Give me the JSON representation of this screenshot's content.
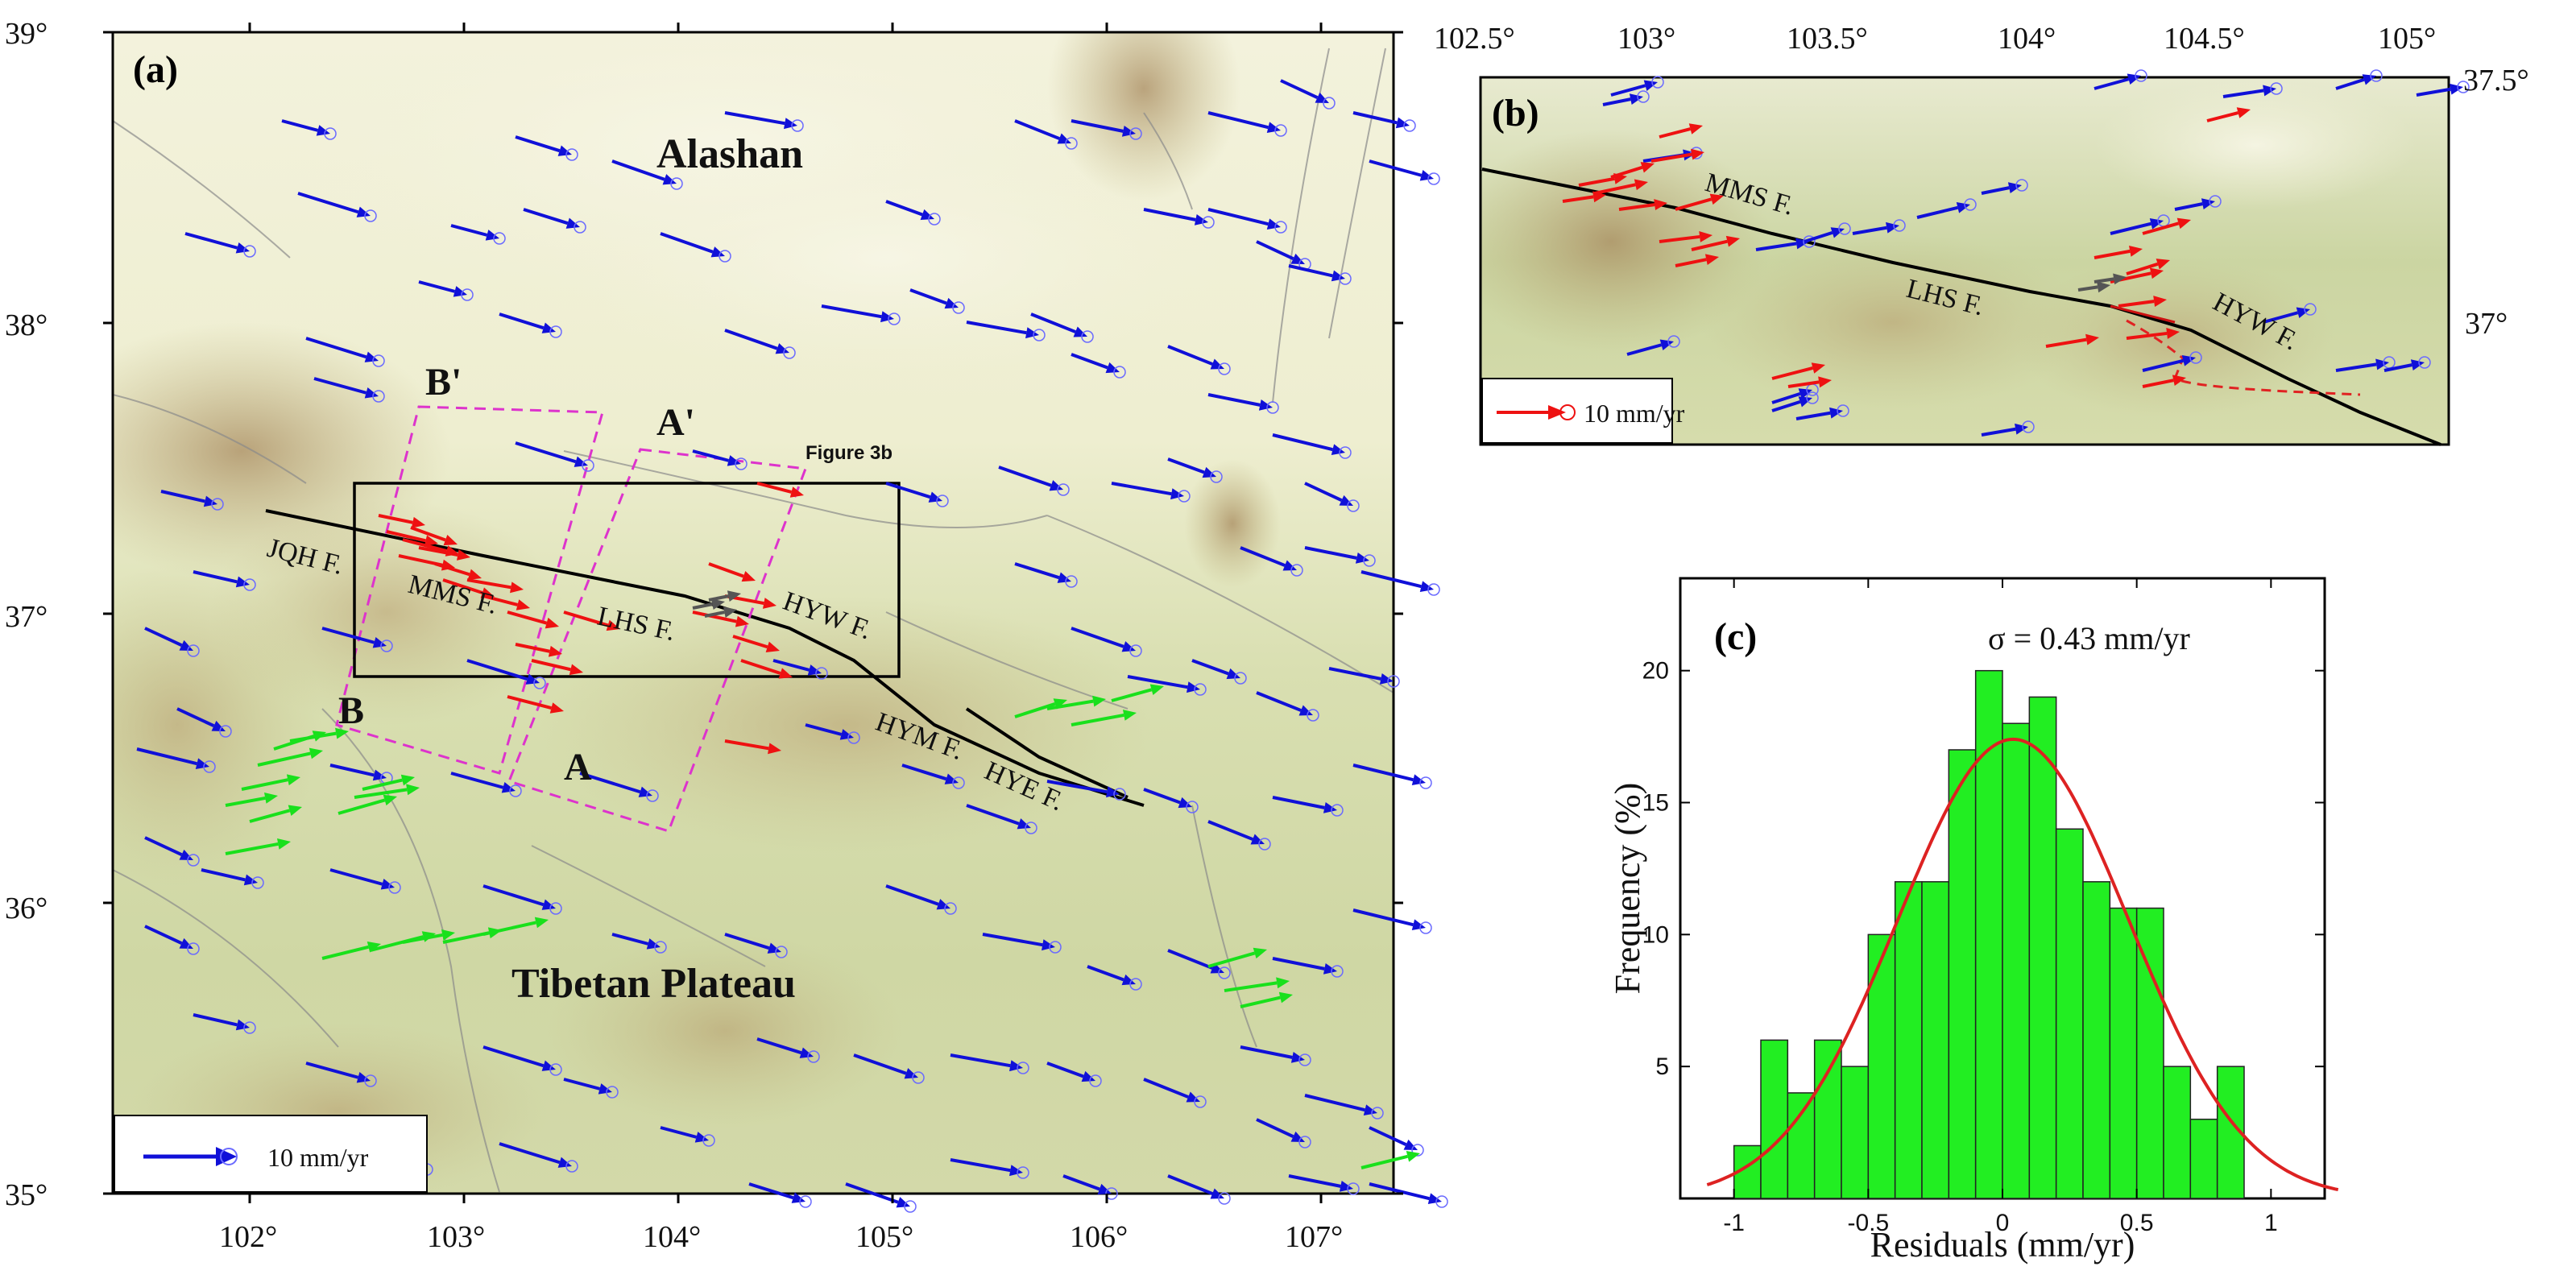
{
  "panel_a": {
    "tag": "(a)",
    "lat_labels": [
      "39°",
      "38°",
      "37°",
      "36°",
      "35°"
    ],
    "lon_labels": [
      "102°",
      "103°",
      "104°",
      "105°",
      "106°",
      "107°"
    ],
    "regions": {
      "north": "Alashan",
      "south": "Tibetan Plateau"
    },
    "faults": [
      "JQH F.",
      "MMS F.",
      "LHS F.",
      "HYW F.",
      "HYM F.",
      "HYE F."
    ],
    "profiles": {
      "a_start": "A",
      "a_end": "A'",
      "b_start": "B",
      "b_end": "B'"
    },
    "inset_box_label": "Figure 3b",
    "legend": {
      "label": "10 mm/yr"
    }
  },
  "panel_b": {
    "tag": "(b)",
    "lon_labels": [
      "102.5°",
      "103°",
      "103.5°",
      "104°",
      "104.5°",
      "105°"
    ],
    "lat_labels": [
      "37.5°",
      "37°"
    ],
    "faults": [
      "MMS F.",
      "LHS F.",
      "HYW F."
    ],
    "legend": {
      "label": "10 mm/yr"
    }
  },
  "panel_c": {
    "tag": "(c)",
    "sigma_label": "σ  = 0.43 mm/yr",
    "xlabel": "Residuals (mm/yr)",
    "ylabel": "Frequency (%)"
  },
  "colors": {
    "velocity_blue": "#1010d8",
    "velocity_red": "#ee1111",
    "velocity_green": "#19e01c",
    "profile_magenta": "#dd33cc",
    "hist_bar": "#22ee22",
    "gauss_curve": "#dd2222",
    "fault_black": "#000000"
  },
  "chart_data": {
    "type": "bar",
    "title": "",
    "xlabel": "Residuals (mm/yr)",
    "ylabel": "Frequency (%)",
    "x_ticks": [
      -1,
      -0.5,
      0,
      0.5,
      1
    ],
    "y_ticks": [
      5,
      10,
      15,
      20
    ],
    "xlim": [
      -1.2,
      1.2
    ],
    "ylim": [
      0,
      23.5
    ],
    "bin_width": 0.1,
    "bin_centers": [
      -0.95,
      -0.85,
      -0.75,
      -0.65,
      -0.55,
      -0.45,
      -0.35,
      -0.25,
      -0.15,
      -0.05,
      0.05,
      0.15,
      0.25,
      0.35,
      0.45,
      0.55,
      0.65,
      0.75,
      0.85,
      0.95
    ],
    "values": [
      2,
      6,
      4,
      6,
      5,
      10,
      12,
      12,
      17,
      20,
      18,
      19,
      14,
      12,
      11,
      11,
      5,
      3,
      5,
      0
    ],
    "curve": {
      "type": "gaussian",
      "mean": 0.04,
      "sigma": 0.43,
      "peak": 17.4
    }
  }
}
